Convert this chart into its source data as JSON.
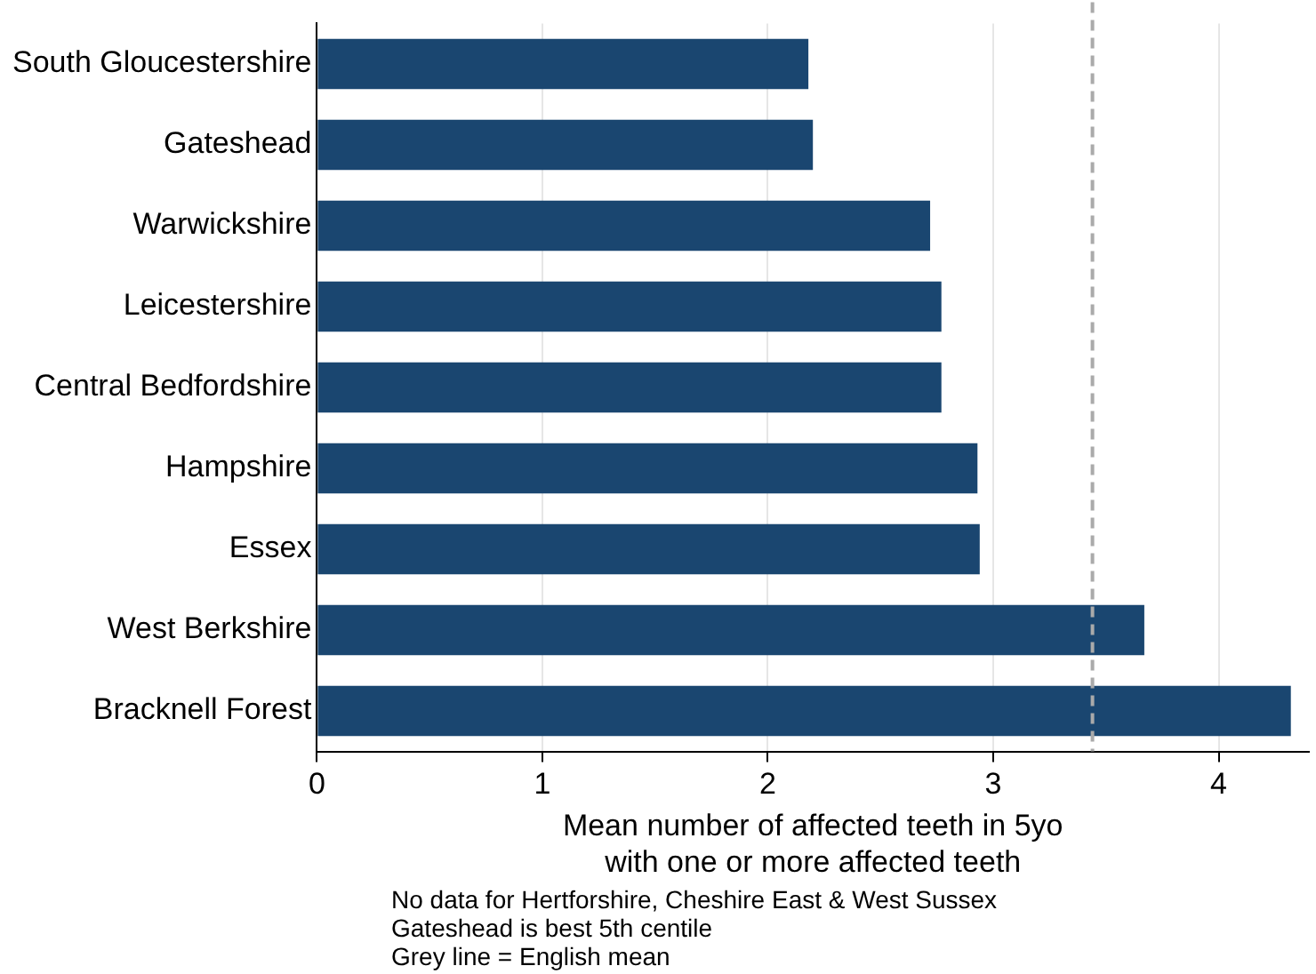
{
  "chart_data": {
    "type": "bar",
    "orientation": "horizontal",
    "categories": [
      "South Gloucestershire",
      "Gateshead",
      "Warwickshire",
      "Leicestershire",
      "Central Bedfordshire",
      "Hampshire",
      "Essex",
      "West Berkshire",
      "Bracknell Forest"
    ],
    "values": [
      2.18,
      2.2,
      2.72,
      2.77,
      2.77,
      2.93,
      2.94,
      3.67,
      4.32
    ],
    "color": "#1a4670",
    "xlabel": "Mean number of affected teeth in 5yo\nwith one or more affected teeth",
    "xlim": [
      0,
      4.4
    ],
    "xticks": [
      0,
      1,
      2,
      3,
      4
    ],
    "grid": "x",
    "ref_lines": [
      {
        "axis": "x",
        "value": 3.44,
        "color": "#aaaaaa",
        "line_style": "dashed"
      }
    ],
    "annotations": [
      "No data for Hertforshire, Cheshire East & West Sussex",
      "Gateshead is best 5th centile",
      "Grey line = English mean"
    ]
  }
}
